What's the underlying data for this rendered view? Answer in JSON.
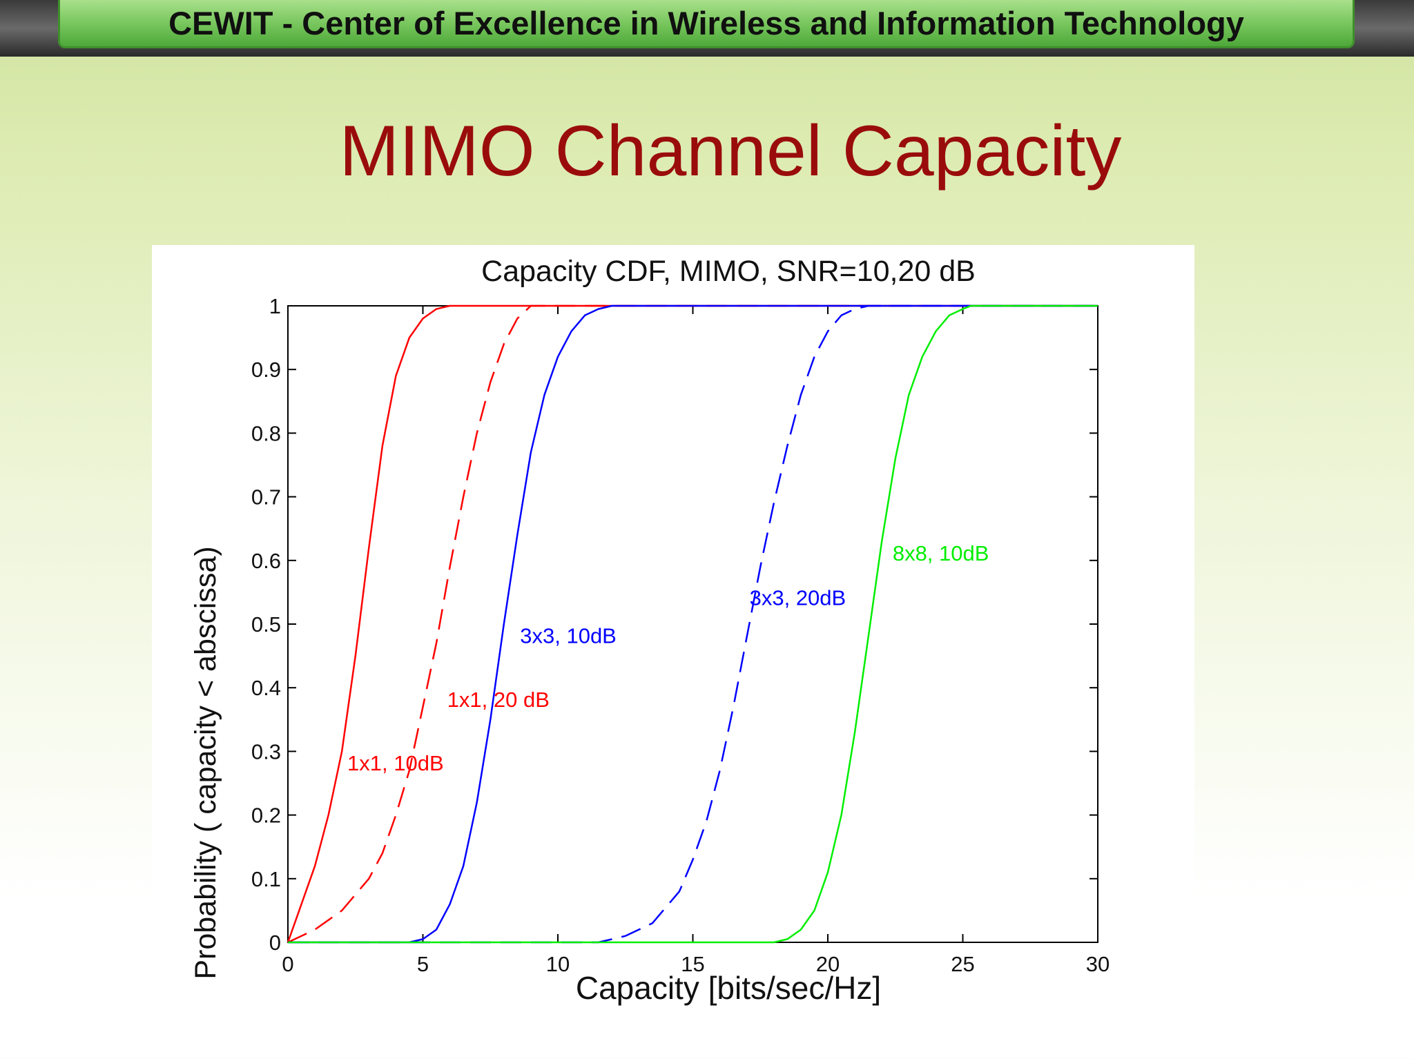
{
  "header": {
    "banner_text": "CEWIT - Center of Excellence in Wireless and Information Technology"
  },
  "slide": {
    "title": "MIMO Channel Capacity"
  },
  "chart_data": {
    "type": "line",
    "title": "Capacity CDF, MIMO, SNR=10,20 dB",
    "xlabel": "Capacity [bits/sec/Hz]",
    "ylabel": "Probability ( capacity < abscissa)",
    "xlim": [
      0,
      30
    ],
    "ylim": [
      0,
      1
    ],
    "xticks": [
      "0",
      "5",
      "10",
      "15",
      "20",
      "25",
      "30"
    ],
    "yticks": [
      "0",
      "0.1",
      "0.2",
      "0.3",
      "0.4",
      "0.5",
      "0.6",
      "0.7",
      "0.8",
      "0.9",
      "1"
    ],
    "grid": false,
    "legend": "none",
    "series": [
      {
        "label": "1x1, 10dB",
        "color": "#ff0000",
        "dash": "solid",
        "label_at": [
          2.2,
          0.27
        ],
        "x": [
          0,
          0.5,
          1.0,
          1.5,
          2.0,
          2.5,
          3.0,
          3.5,
          4.0,
          4.5,
          5.0,
          5.5,
          6.0,
          30
        ],
        "y": [
          0,
          0.06,
          0.12,
          0.2,
          0.3,
          0.45,
          0.62,
          0.78,
          0.89,
          0.95,
          0.98,
          0.995,
          1.0,
          1.0
        ]
      },
      {
        "label": "1x1, 20 dB",
        "color": "#ff0000",
        "dash": "dashed",
        "label_at": [
          5.9,
          0.37
        ],
        "x": [
          0,
          1.0,
          2.0,
          3.0,
          3.5,
          4.0,
          4.5,
          5.0,
          5.5,
          6.0,
          6.5,
          7.0,
          7.5,
          8.0,
          8.5,
          9.0,
          30
        ],
        "y": [
          0,
          0.02,
          0.05,
          0.1,
          0.14,
          0.2,
          0.27,
          0.37,
          0.47,
          0.59,
          0.7,
          0.8,
          0.88,
          0.94,
          0.98,
          1.0,
          1.0
        ]
      },
      {
        "label": "3x3, 10dB",
        "color": "#0000ff",
        "dash": "solid",
        "label_at": [
          8.6,
          0.47
        ],
        "x": [
          0,
          4.5,
          5.0,
          5.5,
          6.0,
          6.5,
          7.0,
          7.5,
          8.0,
          8.5,
          9.0,
          9.5,
          10.0,
          10.5,
          11.0,
          11.5,
          12.0,
          30
        ],
        "y": [
          0,
          0,
          0.005,
          0.02,
          0.06,
          0.12,
          0.22,
          0.35,
          0.5,
          0.64,
          0.77,
          0.86,
          0.92,
          0.96,
          0.985,
          0.995,
          1.0,
          1.0
        ]
      },
      {
        "label": "3x3, 20dB",
        "color": "#0000ff",
        "dash": "dashed",
        "label_at": [
          17.1,
          0.53
        ],
        "x": [
          0,
          11.5,
          12.5,
          13.5,
          14.5,
          15.0,
          15.5,
          16.0,
          16.5,
          17.0,
          17.5,
          18.0,
          18.5,
          19.0,
          19.5,
          20.0,
          20.5,
          21.0,
          21.5,
          30
        ],
        "y": [
          0,
          0,
          0.01,
          0.03,
          0.08,
          0.13,
          0.19,
          0.27,
          0.37,
          0.48,
          0.59,
          0.69,
          0.78,
          0.86,
          0.92,
          0.96,
          0.985,
          0.995,
          1.0,
          1.0
        ]
      },
      {
        "label": "8x8, 10dB",
        "color": "#00ee00",
        "dash": "solid",
        "label_at": [
          22.4,
          0.6
        ],
        "x": [
          0,
          18.0,
          18.5,
          19.0,
          19.5,
          20.0,
          20.5,
          21.0,
          21.5,
          22.0,
          22.5,
          23.0,
          23.5,
          24.0,
          24.5,
          25.0,
          25.3,
          30
        ],
        "y": [
          0,
          0,
          0.005,
          0.02,
          0.05,
          0.11,
          0.2,
          0.33,
          0.48,
          0.63,
          0.76,
          0.86,
          0.92,
          0.96,
          0.985,
          0.995,
          1.0,
          1.0
        ]
      }
    ]
  }
}
